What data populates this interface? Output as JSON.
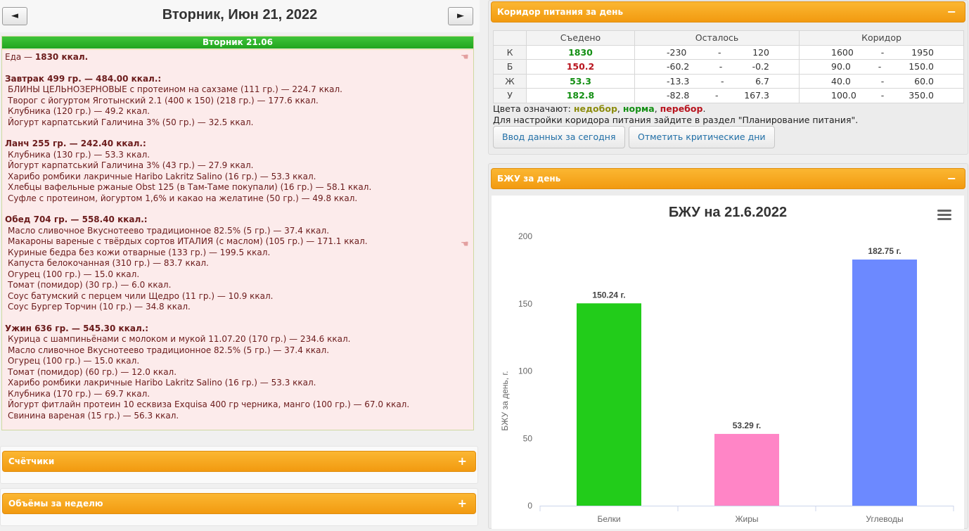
{
  "day": {
    "title": "Вторник, Июн 21, 2022",
    "prev_label": "◄",
    "next_label": "►",
    "panel_title": "Вторник 21.06"
  },
  "food": {
    "total": [
      {
        "t": "Еда — "
      },
      {
        "t": "1830 ккал.",
        "b": true
      }
    ],
    "meals": [
      {
        "head": "Завтрак 499 гр. — 484.00 ккал.:",
        "items": [
          "БЛИНЫ ЦЕЛЬНОЗЕРНОВЫЕ с протеином на сахзаме (111 гр.) — 224.7 ккал.",
          "Творог с йогуртом Яготынский 2.1 (400 к 150) (218 гр.) — 177.6 ккал.",
          "Клубника (120 гр.) — 49.2 ккал.",
          "Йогурт карпатський Галичина 3% (50 гр.) — 32.5 ккал."
        ]
      },
      {
        "head": "Ланч 255 гр. — 242.40 ккал.:",
        "items": [
          "Клубника (130 гр.) — 53.3 ккал.",
          "Йогурт карпатський Галичина 3% (43 гр.) — 27.9 ккал.",
          "Харибо ромбики лакричные Haribo Lakritz Salino (16 гр.) — 53.3 ккал.",
          "Хлебцы вафельные ржаные Obst 125 (в Там-Таме покупали) (16 гр.) — 58.1 ккал.",
          "Суфле с протеином, йогуртом 1,6% и какао на желатине (50 гр.) — 49.8 ккал."
        ]
      },
      {
        "head": "Обед 704 гр. — 558.40 ккал.:",
        "items": [
          "Масло сливочное Вкуснотеево традиционное 82.5% (5 гр.) — 37.4 ккал.",
          "Макароны вареные с твёрдых сортов ИТАЛИЯ (с маслом) (105 гр.) — 171.1 ккал.",
          "Куриные бедра без кожи отварные (133 гр.) — 199.5 ккал.",
          "Капуста белокочанная (310 гр.) — 83.7 ккал.",
          "Огурец (100 гр.) — 15.0 ккал.",
          "Томат (помидор) (30 гр.) — 6.0 ккал.",
          "Соус батумский с перцем чили Щедро (11 гр.) — 10.9 ккал.",
          "Соус Бургер Торчин (10 гр.) — 34.8 ккал."
        ]
      },
      {
        "head": "Ужин 636 гр. — 545.30 ккал.:",
        "items": [
          "Курица с шампиньёнами с молоком и мукой 11.07.20 (170 гр.) — 234.6 ккал.",
          "Масло сливочное Вкуснотеево традиционное 82.5% (5 гр.) — 37.4 ккал.",
          "Огурец (100 гр.) — 15.0 ккал.",
          "Томат (помидор) (60 гр.) — 12.0 ккал.",
          "Харибо ромбики лакричные Haribo Lakritz Salino (16 гр.) — 53.3 ккал.",
          "Клубника (170 гр.) — 69.7 ккал.",
          "Йогурт фитлайн протеин 10 есквиза Exquisa 400 гр черника, манго (100 гр.) — 67.0 ккал.",
          "Свинина вареная (15 гр.) — 56.3 ккал."
        ]
      }
    ]
  },
  "panels": {
    "counters": {
      "title": "Счётчики",
      "sign": "+"
    },
    "weekly": {
      "title": "Объёмы за неделю",
      "sign": "+"
    },
    "corridor": {
      "title": "Коридор питания за день",
      "sign": "−"
    },
    "bju": {
      "title": "БЖУ за день",
      "sign": "−"
    }
  },
  "corridor": {
    "headers": {
      "eaten": "Съедено",
      "left": "Осталось",
      "corridor": "Коридор"
    },
    "dash": "-",
    "rows": [
      {
        "label": "К",
        "eaten": "1830",
        "status": "ok",
        "left_min": "-230",
        "left_max": "120",
        "c_min": "1600",
        "c_max": "1950"
      },
      {
        "label": "Б",
        "eaten": "150.2",
        "status": "over",
        "left_min": "-60.2",
        "left_max": "-0.2",
        "c_min": "90.0",
        "c_max": "150.0"
      },
      {
        "label": "Ж",
        "eaten": "53.3",
        "status": "ok",
        "left_min": "-13.3",
        "left_max": "6.7",
        "c_min": "40.0",
        "c_max": "60.0"
      },
      {
        "label": "У",
        "eaten": "182.8",
        "status": "ok",
        "left_min": "-82.8",
        "left_max": "167.3",
        "c_min": "100.0",
        "c_max": "350.0"
      }
    ],
    "legend_prefix": "Цвета означают: ",
    "legend_under": "недобор",
    "legend_sep": ", ",
    "legend_ok": "норма",
    "legend_over": "перебор",
    "legend_end": ".",
    "hint": "Для настройки коридора питания зайдите в раздел \"Планирование питания\".",
    "btn_input": "Ввод данных за сегодня",
    "btn_critical": "Отметить критические дни"
  },
  "colors": {
    "ok": "#138f13",
    "over": "#b8141e",
    "under": "#8c8c0e",
    "accent": "#f5a623"
  },
  "chart_data": {
    "type": "bar",
    "title": "БЖУ на 21.6.2022",
    "ylabel": "БЖУ за день, г.",
    "xlabel": "",
    "categories": [
      "Белки",
      "Жиры",
      "Углеводы"
    ],
    "values": [
      150.24,
      53.29,
      182.75
    ],
    "data_labels": [
      "150.24 г.",
      "53.29 г.",
      "182.75 г."
    ],
    "colors": [
      "#22cc1a",
      "#ff85c6",
      "#6c89ff"
    ],
    "ylim": [
      0,
      200
    ],
    "yticks": [
      0,
      50,
      100,
      150,
      200
    ],
    "grid": false,
    "legend": "none",
    "menu_icon": "hamburger-menu-icon"
  }
}
